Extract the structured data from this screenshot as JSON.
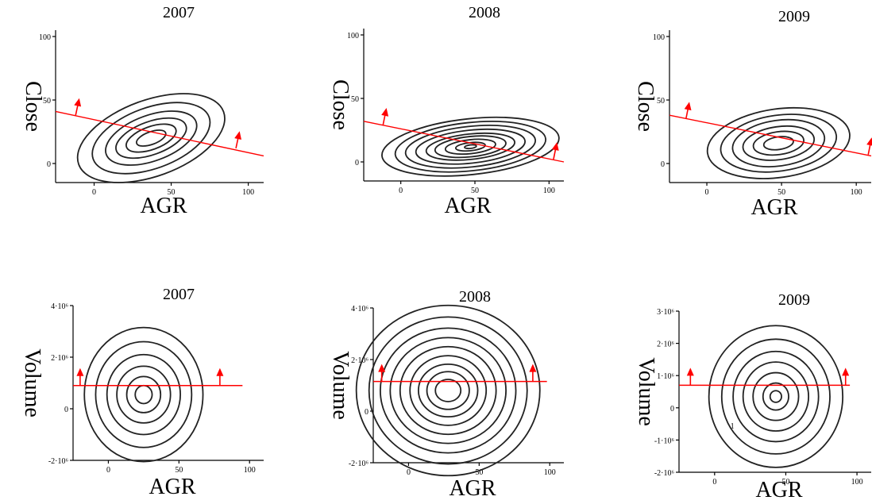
{
  "chart_data": [
    {
      "type": "contour",
      "title": "2007",
      "xlabel": "AGR",
      "ylabel": "Close",
      "xlim": [
        -25,
        110
      ],
      "ylim": [
        -15,
        105
      ],
      "xticks": [
        "0",
        "50",
        "100"
      ],
      "yticks": [
        "0",
        "50",
        "100"
      ],
      "contour_center": [
        37,
        20
      ],
      "contour_radii": [
        [
          50,
          30
        ],
        [
          40,
          24
        ],
        [
          31,
          18
        ],
        [
          24,
          13
        ],
        [
          17,
          9
        ],
        [
          10,
          5
        ]
      ],
      "contour_rotation": -20,
      "contour_levels": 6,
      "red_line": {
        "from": [
          -25,
          41
        ],
        "to": [
          110,
          6
        ]
      },
      "arrows": [
        [
          -12,
          38
        ],
        [
          92,
          12
        ]
      ]
    },
    {
      "type": "contour",
      "title": "2008",
      "xlabel": "AGR",
      "ylabel": "Close",
      "xlim": [
        -25,
        110
      ],
      "ylim": [
        -15,
        105
      ],
      "xticks": [
        "0",
        "50",
        "100"
      ],
      "yticks": [
        "0",
        "50",
        "100"
      ],
      "contour_center": [
        47,
        12
      ],
      "contour_radii": [
        [
          60,
          22
        ],
        [
          51,
          19
        ],
        [
          44,
          16
        ],
        [
          37,
          13
        ],
        [
          30,
          10
        ],
        [
          24,
          8
        ],
        [
          17,
          5.5
        ],
        [
          10,
          3.2
        ],
        [
          4,
          1.4
        ]
      ],
      "contour_rotation": -6,
      "contour_levels": 9,
      "red_line": {
        "from": [
          -25,
          32
        ],
        "to": [
          110,
          0
        ]
      },
      "arrows": [
        [
          -12,
          29
        ],
        [
          103,
          2
        ]
      ]
    },
    {
      "type": "contour",
      "title": "2009",
      "xlabel": "AGR",
      "ylabel": "Close",
      "xlim": [
        -25,
        110
      ],
      "ylim": [
        -15,
        105
      ],
      "xticks": [
        "0",
        "50",
        "100"
      ],
      "yticks": [
        "0",
        "50",
        "100"
      ],
      "contour_center": [
        48,
        16
      ],
      "contour_radii": [
        [
          48,
          27
        ],
        [
          39,
          22
        ],
        [
          31,
          18
        ],
        [
          24,
          13
        ],
        [
          17,
          9
        ],
        [
          10,
          5
        ]
      ],
      "contour_rotation": -8,
      "contour_levels": 6,
      "red_line": {
        "from": [
          -25,
          38
        ],
        "to": [
          110,
          6
        ]
      },
      "arrows": [
        [
          -14,
          35
        ],
        [
          108,
          7
        ]
      ]
    },
    {
      "type": "contour",
      "title": "2007",
      "xlabel": "AGR",
      "ylabel": "Volume",
      "xlim": [
        -25,
        110
      ],
      "ylim": [
        -2000000,
        4000000
      ],
      "xticks": [
        "0",
        "50",
        "100"
      ],
      "yticks": [
        "-2·10⁶",
        "0",
        "2·10⁶",
        "4·10⁶"
      ],
      "contour_center": [
        25,
        550000
      ],
      "contour_radii": [
        [
          42,
          2600000
        ],
        [
          34,
          2050000
        ],
        [
          26,
          1550000
        ],
        [
          19,
          1100000
        ],
        [
          12,
          700000
        ],
        [
          6,
          350000
        ]
      ],
      "contour_rotation": 0,
      "contour_levels": 6,
      "red_line": {
        "from": [
          -25,
          900000
        ],
        "to": [
          95,
          900000
        ]
      },
      "arrows": [
        [
          -20,
          900000
        ],
        [
          79,
          900000
        ]
      ]
    },
    {
      "type": "contour",
      "title": "2008",
      "xlabel": "AGR",
      "ylabel": "Volume",
      "xlim": [
        -25,
        110
      ],
      "ylim": [
        -2000000,
        4000000
      ],
      "xticks": [
        "0",
        "50",
        "100"
      ],
      "yticks": [
        "-2·10⁶",
        "0",
        "2·10⁶",
        "4·10⁶"
      ],
      "contour_center": [
        28,
        800000
      ],
      "contour_radii": [
        [
          65,
          3300000
        ],
        [
          56,
          2850000
        ],
        [
          48,
          2420000
        ],
        [
          41,
          2050000
        ],
        [
          34,
          1700000
        ],
        [
          27,
          1350000
        ],
        [
          21,
          1020000
        ],
        [
          15,
          730000
        ],
        [
          9,
          430000
        ]
      ],
      "contour_rotation": 0,
      "contour_levels": 9,
      "red_line": {
        "from": [
          -25,
          1150000
        ],
        "to": [
          98,
          1150000
        ]
      },
      "arrows": [
        [
          -19,
          1150000
        ],
        [
          88,
          1150000
        ]
      ]
    },
    {
      "type": "contour",
      "title": "2009",
      "xlabel": "AGR",
      "ylabel": "Volume",
      "xlim": [
        -25,
        110
      ],
      "ylim": [
        -2000000,
        3000000
      ],
      "xticks": [
        "0",
        "50",
        "100"
      ],
      "yticks": [
        "-2·10⁶",
        "-1·10⁶",
        "0",
        "1·10⁶",
        "2·10⁶",
        "3·10⁶"
      ],
      "contour_center": [
        43,
        350000
      ],
      "contour_radii": [
        [
          47,
          2200000
        ],
        [
          38,
          1780000
        ],
        [
          30,
          1400000
        ],
        [
          23,
          1070000
        ],
        [
          16,
          740000
        ],
        [
          9,
          420000
        ],
        [
          4,
          180000
        ]
      ],
      "contour_rotation": 0,
      "contour_levels": 7,
      "contour_label": "1",
      "red_line": {
        "from": [
          -25,
          700000
        ],
        "to": [
          95,
          700000
        ]
      },
      "arrows": [
        [
          -17,
          700000
        ],
        [
          92,
          700000
        ]
      ]
    }
  ]
}
